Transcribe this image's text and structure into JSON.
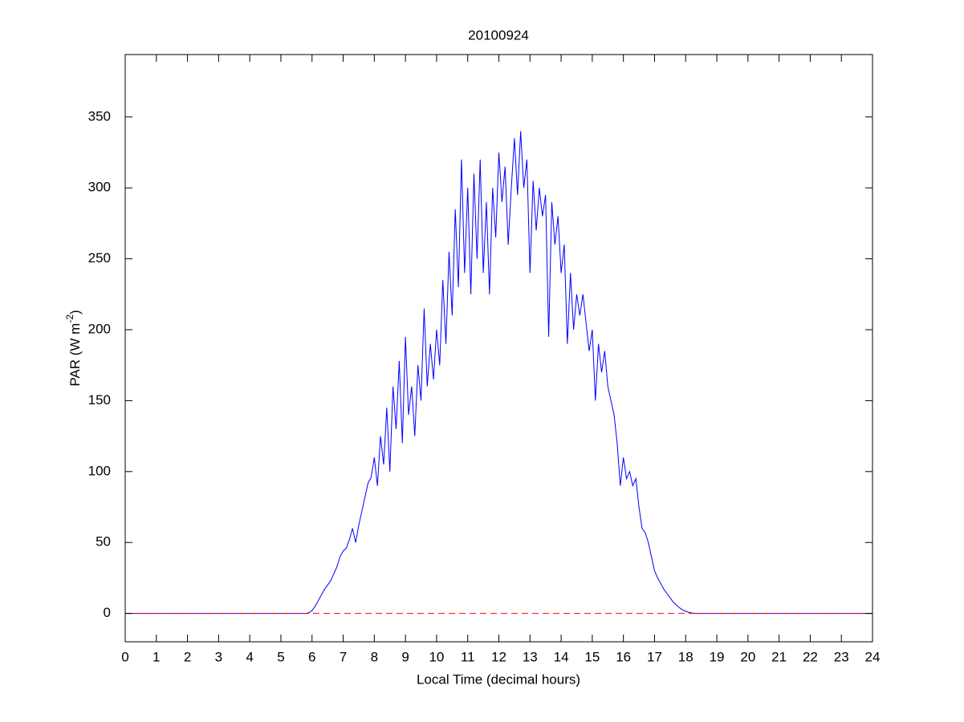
{
  "chart_data": {
    "type": "line",
    "title": "20100924",
    "xlabel": "Local Time (decimal hours)",
    "ylabel": [
      "PAR (W m",
      "-2",
      ")"
    ],
    "color": "#0000ff",
    "hline": 0,
    "hline_color": "#ff0000",
    "hline_dashed": true,
    "xlim": [
      0,
      24
    ],
    "xticks": [
      0,
      1,
      2,
      3,
      4,
      5,
      6,
      7,
      8,
      9,
      10,
      11,
      12,
      13,
      14,
      15,
      16,
      17,
      18,
      19,
      20,
      21,
      22,
      23,
      24
    ],
    "ylim": [
      -20,
      394
    ],
    "yticks": [
      0,
      50,
      100,
      150,
      200,
      250,
      300,
      350
    ],
    "grid": false,
    "x": [
      0,
      5.8,
      5.9,
      6,
      6.1,
      6.2,
      6.3,
      6.4,
      6.5,
      6.6,
      6.7,
      6.8,
      6.9,
      7,
      7.1,
      7.2,
      7.3,
      7.4,
      7.5,
      7.6,
      7.7,
      7.8,
      7.9,
      8,
      8.1,
      8.2,
      8.3,
      8.4,
      8.5,
      8.6,
      8.7,
      8.8,
      8.9,
      9,
      9.1,
      9.2,
      9.3,
      9.4,
      9.5,
      9.6,
      9.7,
      9.8,
      9.9,
      10,
      10.1,
      10.2,
      10.3,
      10.4,
      10.5,
      10.6,
      10.7,
      10.8,
      10.9,
      11,
      11.1,
      11.2,
      11.3,
      11.4,
      11.5,
      11.6,
      11.7,
      11.8,
      11.9,
      12,
      12.1,
      12.2,
      12.3,
      12.4,
      12.5,
      12.6,
      12.7,
      12.8,
      12.9,
      13,
      13.1,
      13.2,
      13.3,
      13.4,
      13.5,
      13.6,
      13.7,
      13.8,
      13.9,
      14,
      14.1,
      14.2,
      14.3,
      14.4,
      14.5,
      14.6,
      14.7,
      14.8,
      14.9,
      15,
      15.1,
      15.2,
      15.3,
      15.4,
      15.5,
      15.6,
      15.7,
      15.8,
      15.9,
      16,
      16.1,
      16.2,
      16.3,
      16.4,
      16.5,
      16.6,
      16.7,
      16.8,
      16.9,
      17,
      17.1,
      17.2,
      17.3,
      17.4,
      17.5,
      17.6,
      17.7,
      17.8,
      17.9,
      18,
      18.1,
      18.2,
      18.3,
      24
    ],
    "values": [
      0,
      0,
      0.5,
      2,
      5,
      9,
      13,
      17,
      20,
      23,
      28,
      33,
      40,
      44,
      46,
      52,
      60,
      50,
      62,
      72,
      82,
      92,
      96,
      110,
      90,
      125,
      105,
      145,
      100,
      160,
      130,
      178,
      120,
      195,
      140,
      160,
      125,
      175,
      150,
      215,
      160,
      190,
      165,
      200,
      175,
      235,
      190,
      255,
      210,
      285,
      230,
      320,
      240,
      300,
      225,
      310,
      250,
      320,
      240,
      290,
      225,
      300,
      265,
      325,
      290,
      315,
      260,
      300,
      335,
      295,
      340,
      300,
      320,
      240,
      305,
      270,
      300,
      280,
      295,
      195,
      290,
      260,
      280,
      240,
      260,
      190,
      240,
      200,
      225,
      210,
      225,
      205,
      185,
      200,
      150,
      190,
      170,
      185,
      160,
      150,
      140,
      120,
      90,
      110,
      95,
      100,
      90,
      95,
      75,
      60,
      57,
      50,
      40,
      30,
      25,
      21,
      17,
      14,
      11,
      8,
      6,
      4,
      2.5,
      1.5,
      0.8,
      0.3,
      0,
      0
    ]
  }
}
